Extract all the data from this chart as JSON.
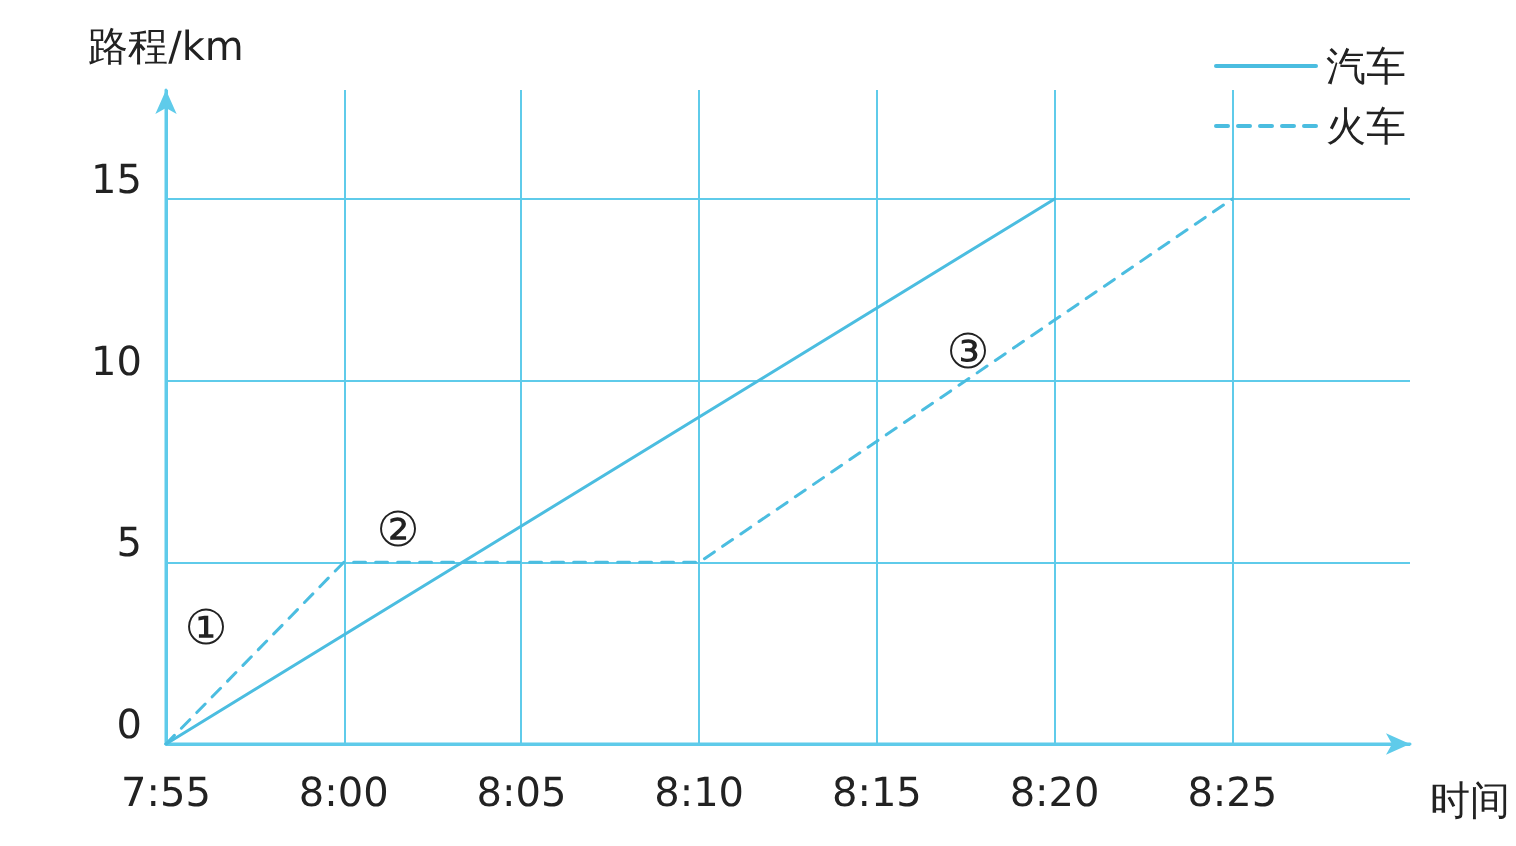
{
  "chart_data": {
    "type": "line",
    "xlabel": "时间",
    "ylabel": "路程/km",
    "series": [
      {
        "name": "汽车",
        "color": "#4bbde0",
        "line_style": "solid",
        "x": [
          7.916667,
          8.333333
        ],
        "values": [
          0,
          15
        ]
      },
      {
        "name": "火车",
        "color": "#4bbde0",
        "line_style": "dashed",
        "x": [
          7.916667,
          8,
          8.166667,
          8.416667
        ],
        "values": [
          0,
          5,
          5,
          15
        ]
      }
    ],
    "xlim": [
      7.916667,
      8.5
    ],
    "ylim": [
      0,
      18
    ],
    "xticks": [
      {
        "value": 7.916667,
        "label": "7:55"
      },
      {
        "value": 8,
        "label": "8:00"
      },
      {
        "value": 8.083333,
        "label": "8:05"
      },
      {
        "value": 8.166667,
        "label": "8:10"
      },
      {
        "value": 8.25,
        "label": "8:15"
      },
      {
        "value": 8.333333,
        "label": "8:20"
      },
      {
        "value": 8.416667,
        "label": "8:25"
      }
    ],
    "yticks": [
      0,
      5,
      10,
      15
    ],
    "grid": true,
    "legend": "top right",
    "marker": "none",
    "annotations": [
      "①",
      "②",
      "③"
    ]
  }
}
